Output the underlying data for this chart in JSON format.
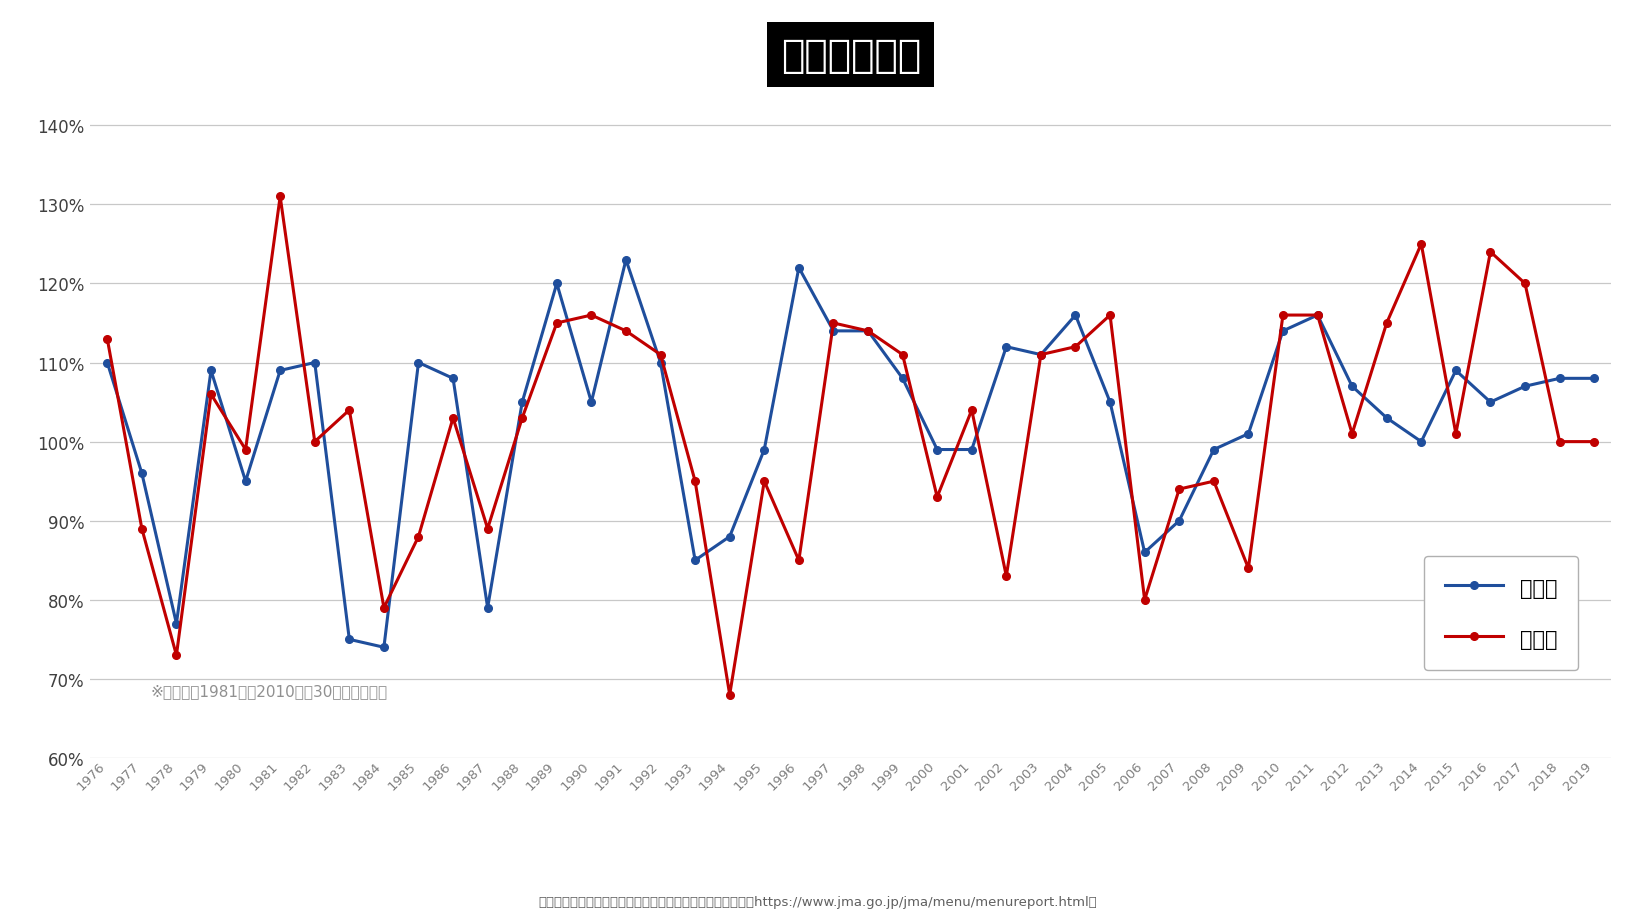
{
  "years": [
    1976,
    1977,
    1978,
    1979,
    1980,
    1981,
    1982,
    1983,
    1984,
    1985,
    1986,
    1987,
    1988,
    1989,
    1990,
    1991,
    1992,
    1993,
    1994,
    1995,
    1996,
    1997,
    1998,
    1999,
    2000,
    2001,
    2002,
    2003,
    2004,
    2005,
    2006,
    2007,
    2008,
    2009,
    2010,
    2011,
    2012,
    2013,
    2014,
    2015,
    2016,
    2017,
    2018,
    2019
  ],
  "east_japan": [
    110,
    96,
    77,
    109,
    95,
    109,
    110,
    75,
    74,
    110,
    108,
    79,
    105,
    120,
    105,
    123,
    110,
    85,
    88,
    99,
    122,
    114,
    114,
    108,
    99,
    99,
    112,
    111,
    116,
    105,
    86,
    90,
    99,
    101,
    114,
    116,
    107,
    103,
    100,
    109,
    105,
    107,
    108,
    108
  ],
  "west_japan": [
    113,
    89,
    73,
    106,
    99,
    131,
    100,
    104,
    79,
    88,
    103,
    89,
    103,
    115,
    116,
    114,
    111,
    95,
    68,
    95,
    85,
    115,
    114,
    111,
    93,
    104,
    83,
    111,
    112,
    116,
    80,
    94,
    95,
    84,
    116,
    116,
    101,
    115,
    125,
    101,
    124,
    120,
    100,
    100
  ],
  "title": "降水量平年比",
  "east_label": "東日本",
  "west_label": "西日本",
  "east_color": "#1f4e9c",
  "west_color": "#c00000",
  "ylim_min": 60,
  "ylim_max": 142,
  "yticks": [
    60,
    70,
    80,
    90,
    100,
    110,
    120,
    130,
    140
  ],
  "note": "※平年値は1981年～2010年の30年間の平均値",
  "source": "（出典：気象庁「各種データ・資料」よりスペクティ作成　https://www.jma.go.jp/jma/menu/menureport.html）",
  "bg_color": "#ffffff",
  "grid_color": "#c8c8c8",
  "title_bg": "#000000",
  "title_fg": "#ffffff"
}
